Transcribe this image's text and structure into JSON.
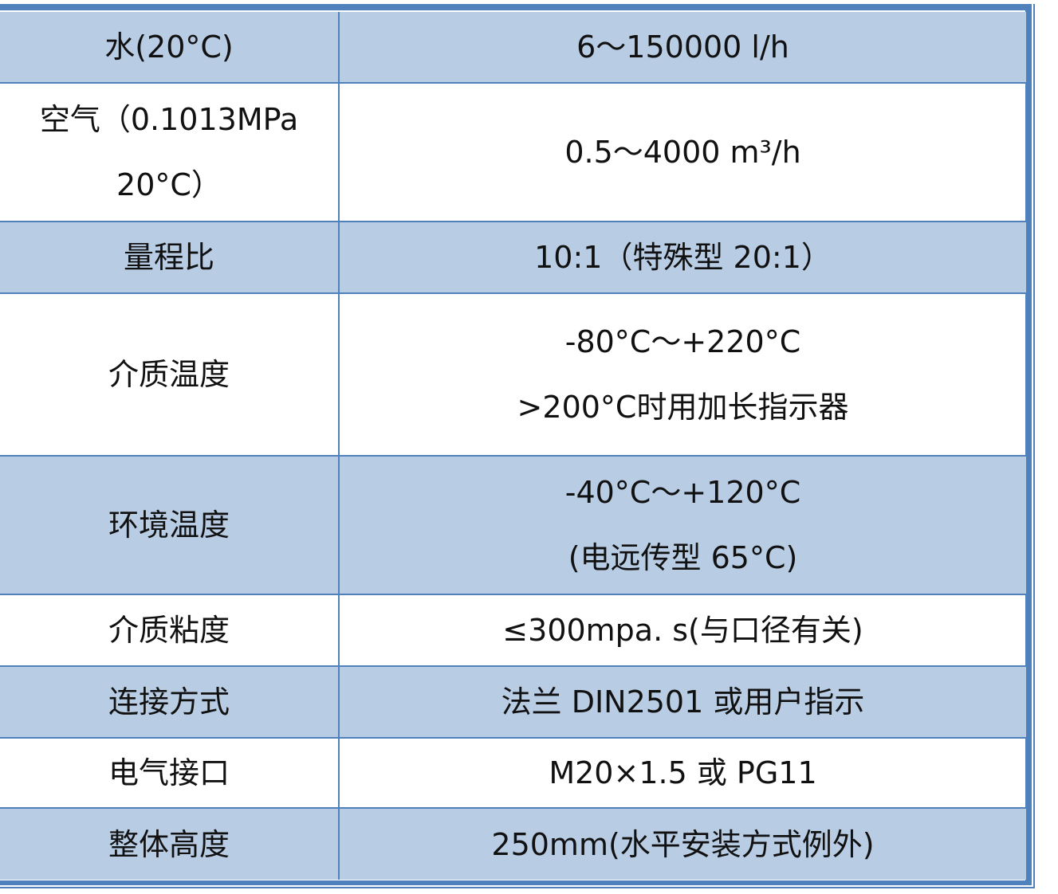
{
  "colors": {
    "header_fill": "#b8cce4",
    "border": "#4f81bd"
  },
  "rows": [
    {
      "label": [
        "水(20°C)"
      ],
      "value": [
        "6～150000 l/h"
      ],
      "shaded": true
    },
    {
      "label": [
        "空气（0.1013MPa",
        "20°C）"
      ],
      "value": [
        "0.5～4000 m³/h"
      ],
      "shaded": false
    },
    {
      "label": [
        "量程比"
      ],
      "value": [
        "10:1（特殊型 20:1）"
      ],
      "shaded": true
    },
    {
      "label": [
        "介质温度"
      ],
      "value": [
        "-80°C～+220°C",
        ">200°C时用加长指示器"
      ],
      "shaded": false
    },
    {
      "label": [
        "环境温度"
      ],
      "value": [
        "-40°C～+120°C",
        "(电远传型 65°C)"
      ],
      "shaded": true
    },
    {
      "label": [
        "介质粘度"
      ],
      "value": [
        "≤300mpa. s(与口径有关)"
      ],
      "shaded": false
    },
    {
      "label": [
        "连接方式"
      ],
      "value": [
        "法兰 DIN2501 或用户指示"
      ],
      "shaded": true
    },
    {
      "label": [
        "电气接口"
      ],
      "value": [
        "M20×1.5 或 PG11"
      ],
      "shaded": false
    },
    {
      "label": [
        "整体高度"
      ],
      "value": [
        "250mm(水平安装方式例外)"
      ],
      "shaded": true
    }
  ]
}
